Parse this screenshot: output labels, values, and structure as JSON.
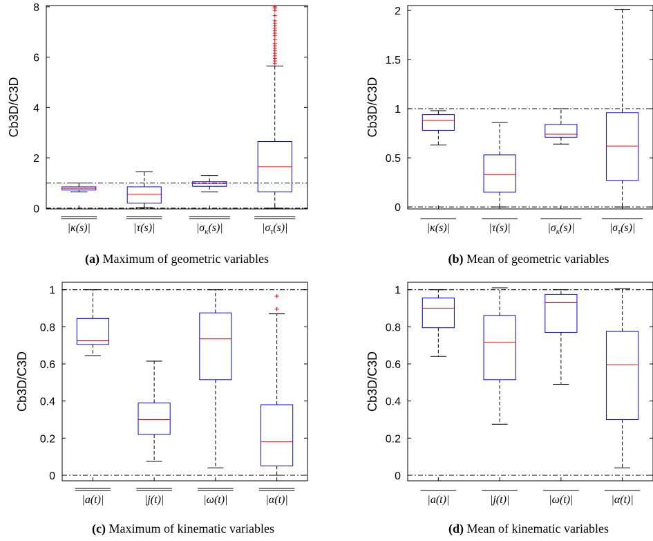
{
  "figure": {
    "panels": [
      {
        "caption_tag": "(a)",
        "caption_text": " Maximum of geometric variables",
        "ylabel": "Cb3D/C3D",
        "yticks": [
          "0",
          "2",
          "4",
          "6",
          "8"
        ],
        "categories": [
          "|κ(s)|",
          "|τ(s)|",
          "|σκ(s)|",
          "|στ(s)|"
        ]
      },
      {
        "caption_tag": "(b)",
        "caption_text": " Mean of geometric variables",
        "ylabel": "Cb3D/C3D",
        "yticks": [
          "0",
          "0.5",
          "1",
          "1.5",
          "2"
        ],
        "categories": [
          "|κ(s)|",
          "|τ(s)|",
          "|σκ(s)|",
          "|στ(s)|"
        ]
      },
      {
        "caption_tag": "(c)",
        "caption_text": " Maximum of kinematic variables",
        "ylabel": "Cb3D/C3D",
        "yticks": [
          "0",
          "0.2",
          "0.4",
          "0.6",
          "0.8",
          "1"
        ],
        "categories": [
          "|a(t)|",
          "|j(t)|",
          "|ω(t)|",
          "|α(t)|"
        ]
      },
      {
        "caption_tag": "(d)",
        "caption_text": " Mean of kinematic variables",
        "ylabel": "Cb3D/C3D",
        "yticks": [
          "0",
          "0.2",
          "0.4",
          "0.6",
          "0.8",
          "1"
        ],
        "categories": [
          "|a(t)|",
          "|j(t)|",
          "|ω(t)|",
          "|α(t)|"
        ]
      }
    ]
  },
  "chart_data": [
    {
      "type": "box",
      "ylim": [
        -0.03,
        8.05
      ],
      "yticks": [
        0,
        2,
        4,
        6,
        8
      ],
      "reference_lines": [
        0,
        1
      ],
      "colors": {
        "box": "#0000ff",
        "median": "#ff0000",
        "whisker": "#000000",
        "outlier": "#ff0000",
        "reference": "#000000"
      },
      "boxes": [
        {
          "category": "|κ(s)|",
          "whisker_low": 0.65,
          "q1": 0.72,
          "median": 0.79,
          "q3": 0.85,
          "whisker_high": 1.0,
          "outliers": []
        },
        {
          "category": "|τ(s)|",
          "whisker_low": 0.02,
          "q1": 0.2,
          "median": 0.55,
          "q3": 0.85,
          "whisker_high": 1.45,
          "outliers": []
        },
        {
          "category": "|σκ(s)|",
          "whisker_low": 0.65,
          "q1": 0.87,
          "median": 0.98,
          "q3": 1.05,
          "whisker_high": 1.3,
          "outliers": []
        },
        {
          "category": "|στ(s)|",
          "whisker_low": 0.0,
          "q1": 0.65,
          "median": 1.65,
          "q3": 2.65,
          "whisker_high": 5.65,
          "outliers": [
            5.75,
            5.85,
            5.95,
            6.05,
            6.15,
            6.25,
            6.35,
            6.45,
            6.55,
            6.7,
            6.85,
            6.95,
            7.05,
            7.15,
            7.25,
            7.35,
            7.45,
            7.65,
            7.85,
            7.95,
            8.0
          ]
        }
      ]
    },
    {
      "type": "box",
      "ylim": [
        -0.02,
        2.05
      ],
      "yticks": [
        0,
        0.5,
        1,
        1.5,
        2
      ],
      "reference_lines": [
        0,
        1
      ],
      "colors": {
        "box": "#0000ff",
        "median": "#ff0000",
        "whisker": "#000000",
        "outlier": "#ff0000",
        "reference": "#000000"
      },
      "boxes": [
        {
          "category": "|κ(s)|",
          "whisker_low": 0.63,
          "q1": 0.78,
          "median": 0.88,
          "q3": 0.94,
          "whisker_high": 0.98,
          "outliers": []
        },
        {
          "category": "|τ(s)|",
          "whisker_low": 0.0,
          "q1": 0.15,
          "median": 0.33,
          "q3": 0.53,
          "whisker_high": 0.86,
          "outliers": []
        },
        {
          "category": "|σκ(s)|",
          "whisker_low": 0.64,
          "q1": 0.71,
          "median": 0.74,
          "q3": 0.84,
          "whisker_high": 1.0,
          "outliers": []
        },
        {
          "category": "|στ(s)|",
          "whisker_low": 0.0,
          "q1": 0.27,
          "median": 0.62,
          "q3": 0.96,
          "whisker_high": 2.01,
          "outliers": []
        }
      ]
    },
    {
      "type": "box",
      "ylim": [
        -0.03,
        1.04
      ],
      "yticks": [
        0,
        0.2,
        0.4,
        0.6,
        0.8,
        1
      ],
      "reference_lines": [
        0,
        1
      ],
      "colors": {
        "box": "#0000ff",
        "median": "#ff0000",
        "whisker": "#000000",
        "outlier": "#ff0000",
        "reference": "#000000"
      },
      "boxes": [
        {
          "category": "|a(t)|",
          "whisker_low": 0.645,
          "q1": 0.705,
          "median": 0.725,
          "q3": 0.845,
          "whisker_high": 1.0,
          "outliers": []
        },
        {
          "category": "|j(t)|",
          "whisker_low": 0.075,
          "q1": 0.22,
          "median": 0.3,
          "q3": 0.39,
          "whisker_high": 0.615,
          "outliers": []
        },
        {
          "category": "|ω(t)|",
          "whisker_low": 0.04,
          "q1": 0.515,
          "median": 0.735,
          "q3": 0.875,
          "whisker_high": 1.0,
          "outliers": []
        },
        {
          "category": "|α(t)|",
          "whisker_low": 0.0,
          "q1": 0.05,
          "median": 0.18,
          "q3": 0.38,
          "whisker_high": 0.87,
          "outliers": [
            0.895,
            0.965
          ]
        }
      ]
    },
    {
      "type": "box",
      "ylim": [
        -0.03,
        1.04
      ],
      "yticks": [
        0,
        0.2,
        0.4,
        0.6,
        0.8,
        1
      ],
      "reference_lines": [
        0,
        1
      ],
      "colors": {
        "box": "#0000ff",
        "median": "#ff0000",
        "whisker": "#000000",
        "outlier": "#ff0000",
        "reference": "#000000"
      },
      "boxes": [
        {
          "category": "|a(t)|",
          "whisker_low": 0.64,
          "q1": 0.795,
          "median": 0.9,
          "q3": 0.955,
          "whisker_high": 1.0,
          "outliers": []
        },
        {
          "category": "|j(t)|",
          "whisker_low": 0.275,
          "q1": 0.515,
          "median": 0.715,
          "q3": 0.86,
          "whisker_high": 1.01,
          "outliers": []
        },
        {
          "category": "|ω(t)|",
          "whisker_low": 0.49,
          "q1": 0.77,
          "median": 0.93,
          "q3": 0.975,
          "whisker_high": 1.0,
          "outliers": []
        },
        {
          "category": "|α(t)|",
          "whisker_low": 0.04,
          "q1": 0.3,
          "median": 0.595,
          "q3": 0.775,
          "whisker_high": 1.005,
          "outliers": []
        }
      ]
    }
  ]
}
